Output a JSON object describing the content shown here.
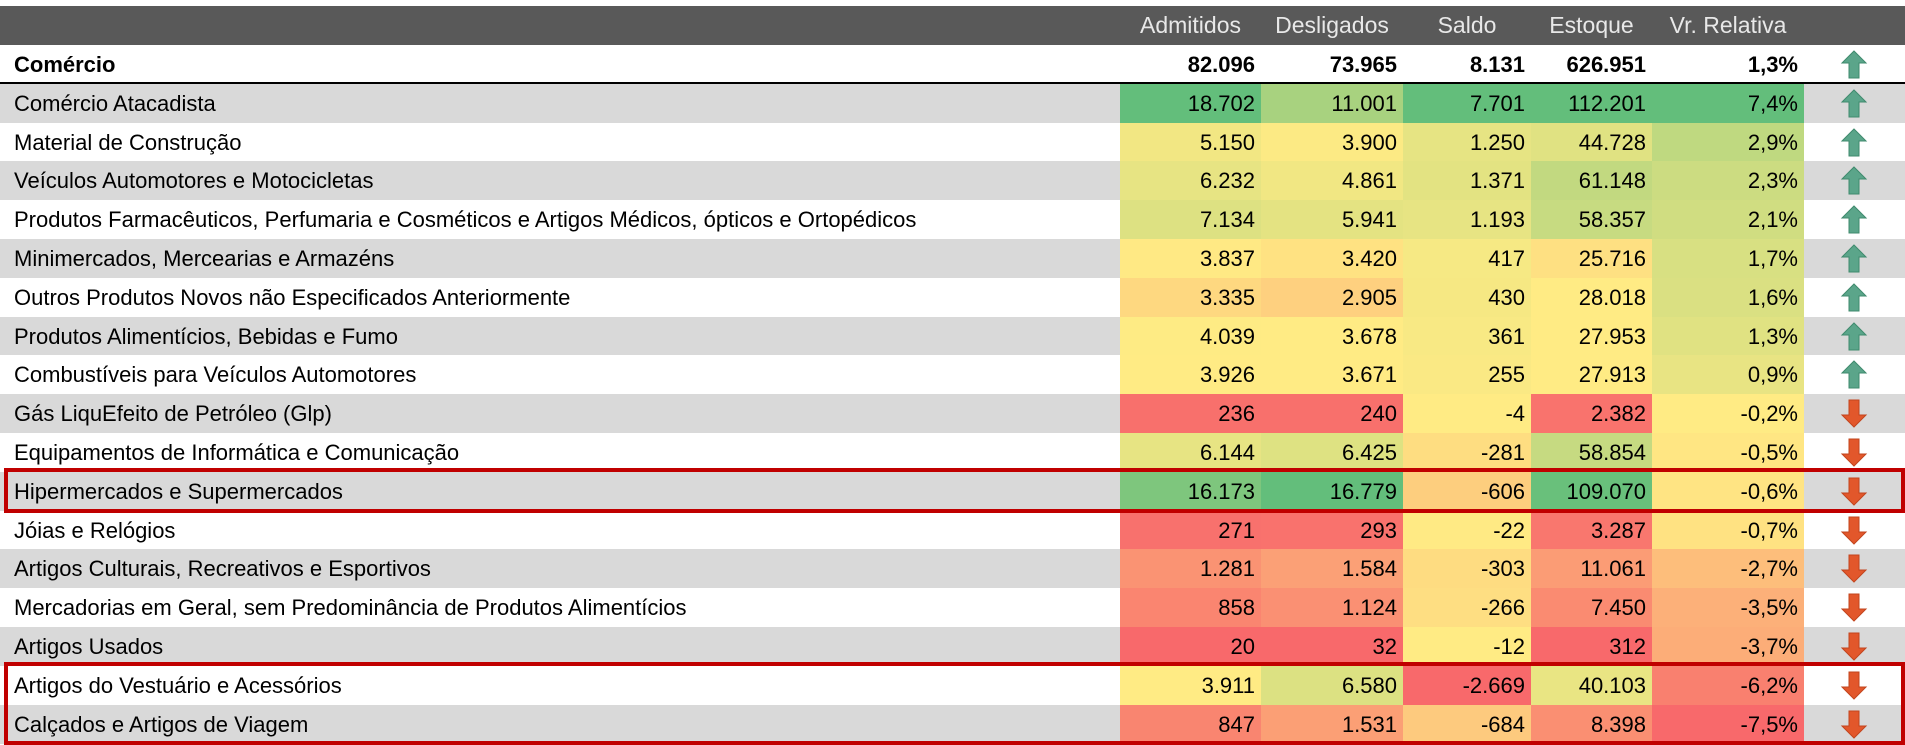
{
  "header": {
    "columns": [
      "Admitidos",
      "Desligados",
      "Saldo",
      "Estoque",
      "Vr. Relativa"
    ]
  },
  "total": {
    "label": "Comércio",
    "values": [
      "82.096",
      "73.965",
      "8.131",
      "626.951",
      "1,3%"
    ]
  },
  "rows": [
    {
      "label": "Comércio Atacadista",
      "values": [
        "18.702",
        "11.001",
        "7.701",
        "112.201",
        "7,4%"
      ]
    },
    {
      "label": "Material de Construção",
      "values": [
        "5.150",
        "3.900",
        "1.250",
        "44.728",
        "2,9%"
      ]
    },
    {
      "label": "Veículos Automotores e Motocicletas",
      "values": [
        "6.232",
        "4.861",
        "1.371",
        "61.148",
        "2,3%"
      ]
    },
    {
      "label": "Produtos Farmacêuticos, Perfumaria e Cosméticos e Artigos Médicos, ópticos e Ortopédicos",
      "values": [
        "7.134",
        "5.941",
        "1.193",
        "58.357",
        "2,1%"
      ]
    },
    {
      "label": "Minimercados, Mercearias e Armazéns",
      "values": [
        "3.837",
        "3.420",
        "417",
        "25.716",
        "1,7%"
      ]
    },
    {
      "label": "Outros Produtos Novos não Especificados Anteriormente",
      "values": [
        "3.335",
        "2.905",
        "430",
        "28.018",
        "1,6%"
      ]
    },
    {
      "label": "Produtos Alimentícios, Bebidas e Fumo",
      "values": [
        "4.039",
        "3.678",
        "361",
        "27.953",
        "1,3%"
      ]
    },
    {
      "label": "Combustíveis para Veículos Automotores",
      "values": [
        "3.926",
        "3.671",
        "255",
        "27.913",
        "0,9%"
      ]
    },
    {
      "label": "Gás LiquEfeito de Petróleo (Glp)",
      "values": [
        "236",
        "240",
        "-4",
        "2.382",
        "-0,2%"
      ]
    },
    {
      "label": "Equipamentos de Informática e Comunicação",
      "values": [
        "6.144",
        "6.425",
        "-281",
        "58.854",
        "-0,5%"
      ]
    },
    {
      "label": "Hipermercados e Supermercados",
      "values": [
        "16.173",
        "16.779",
        "-606",
        "109.070",
        "-0,6%"
      ]
    },
    {
      "label": "Jóias e Relógios",
      "values": [
        "271",
        "293",
        "-22",
        "3.287",
        "-0,7%"
      ]
    },
    {
      "label": "Artigos Culturais, Recreativos e Esportivos",
      "values": [
        "1.281",
        "1.584",
        "-303",
        "11.061",
        "-2,7%"
      ]
    },
    {
      "label": "Mercadorias em Geral, sem Predominância de Produtos Alimentícios",
      "values": [
        "858",
        "1.124",
        "-266",
        "7.450",
        "-3,5%"
      ]
    },
    {
      "label": "Artigos Usados",
      "values": [
        "20",
        "32",
        "-12",
        "312",
        "-3,7%"
      ]
    },
    {
      "label": "Artigos do Vestuário e Acessórios",
      "values": [
        "3.911",
        "6.580",
        "-2.669",
        "40.103",
        "-6,2%"
      ]
    },
    {
      "label": "Calçados e Artigos de Viagem",
      "values": [
        "847",
        "1.531",
        "-684",
        "8.398",
        "-7,5%"
      ]
    }
  ]
}
